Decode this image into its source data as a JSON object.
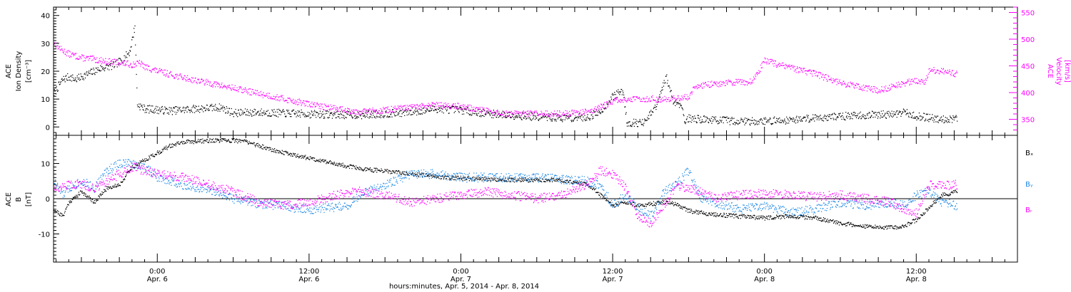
{
  "colors": {
    "black": "#000000",
    "magenta": "#ff00ff",
    "blue": "#1e88e5"
  },
  "xaxis": {
    "title": "hours:minutes, Apr.  5, 2014 - Apr.  8, 2014",
    "ticks": [
      {
        "time": "0:00",
        "date": "Apr. 6",
        "hour": 4
      },
      {
        "time": "12:00",
        "date": "Apr. 6",
        "hour": 16
      },
      {
        "time": "0:00",
        "date": "Apr. 7",
        "hour": 28
      },
      {
        "time": "12:00",
        "date": "Apr. 7",
        "hour": 40
      },
      {
        "time": "0:00",
        "date": "Apr. 8",
        "hour": 52
      },
      {
        "time": "12:00",
        "date": "Apr. 8",
        "hour": 64
      }
    ],
    "range_hours": [
      -4.2,
      72.0
    ]
  },
  "chart_data": [
    {
      "type": "scatter",
      "panel": "top",
      "left_axis": {
        "label_lines": [
          "ACE",
          "Ion Density",
          "[cm⁻³]"
        ],
        "ylim": [
          -3,
          43
        ],
        "ticks": [
          0,
          10,
          20,
          30,
          40
        ],
        "color": "#000000"
      },
      "right_axis": {
        "label_lines": [
          "ACE",
          "Velocity",
          "[km/s]"
        ],
        "ylim": [
          320,
          560
        ],
        "ticks": [
          350,
          400,
          450,
          500,
          550
        ],
        "color": "#ff00ff"
      },
      "series": [
        {
          "axis": "left",
          "color": "#000000",
          "points": [
            [
              -4.2,
              12
            ],
            [
              -3.5,
              17
            ],
            [
              -3,
              18
            ],
            [
              -2.5,
              17
            ],
            [
              -1.5,
              19
            ],
            [
              -0.5,
              21
            ],
            [
              0.5,
              22
            ],
            [
              1.2,
              24
            ],
            [
              1.8,
              27
            ],
            [
              2.2,
              36
            ],
            [
              2.4,
              8
            ],
            [
              3,
              6.5
            ],
            [
              5,
              5.8
            ],
            [
              7,
              6.5
            ],
            [
              9,
              7
            ],
            [
              10,
              5
            ],
            [
              12,
              5.2
            ],
            [
              14,
              4.9
            ],
            [
              16,
              4.6
            ],
            [
              18,
              4.4
            ],
            [
              20,
              4.3
            ],
            [
              22,
              4.7
            ],
            [
              24,
              5.3
            ],
            [
              26,
              6.5
            ],
            [
              28,
              6
            ],
            [
              30,
              4.8
            ],
            [
              32,
              4.2
            ],
            [
              34,
              3.6
            ],
            [
              36,
              3.2
            ],
            [
              38,
              3.5
            ],
            [
              39,
              5.5
            ],
            [
              40,
              11
            ],
            [
              40.8,
              13
            ],
            [
              41.1,
              1.5
            ],
            [
              42.5,
              1.5
            ],
            [
              43.5,
              8
            ],
            [
              44.2,
              18
            ],
            [
              44.8,
              9
            ],
            [
              45.4,
              8
            ],
            [
              45.7,
              2
            ],
            [
              46,
              3
            ],
            [
              48,
              2.5
            ],
            [
              50,
              2
            ],
            [
              52,
              2.1
            ],
            [
              54,
              2.5
            ],
            [
              56,
              3.3
            ],
            [
              58,
              3.8
            ],
            [
              60,
              4.2
            ],
            [
              62,
              4.5
            ],
            [
              63,
              5.2
            ],
            [
              64,
              3.8
            ],
            [
              66,
              2.8
            ],
            [
              67.2,
              2.8
            ]
          ]
        },
        {
          "axis": "right",
          "color": "#ff00ff",
          "points": [
            [
              -4.2,
              493
            ],
            [
              -3.6,
              480
            ],
            [
              -3,
              472
            ],
            [
              -2,
              465
            ],
            [
              -1,
              462
            ],
            [
              0,
              458
            ],
            [
              1,
              456
            ],
            [
              2,
              452
            ],
            [
              2.6,
              455
            ],
            [
              3,
              448
            ],
            [
              4,
              440
            ],
            [
              6,
              428
            ],
            [
              8,
              418
            ],
            [
              10,
              408
            ],
            [
              12,
              398
            ],
            [
              14,
              388
            ],
            [
              16,
              378
            ],
            [
              18,
              370
            ],
            [
              20,
              364
            ],
            [
              22,
              367
            ],
            [
              24,
              372
            ],
            [
              26,
              376
            ],
            [
              28,
              374
            ],
            [
              30,
              365
            ],
            [
              31,
              361
            ],
            [
              32,
              360
            ],
            [
              34,
              360
            ],
            [
              36,
              360
            ],
            [
              38,
              364
            ],
            [
              39,
              372
            ],
            [
              40,
              384
            ],
            [
              42,
              388
            ],
            [
              44,
              388
            ],
            [
              45,
              389
            ],
            [
              46,
              392
            ],
            [
              46.5,
              412
            ],
            [
              48,
              416
            ],
            [
              50,
              420
            ],
            [
              51,
              420
            ],
            [
              52,
              460
            ],
            [
              54,
              446
            ],
            [
              56,
              435
            ],
            [
              58,
              418
            ],
            [
              60,
              408
            ],
            [
              61,
              404
            ],
            [
              62,
              410
            ],
            [
              63,
              418
            ],
            [
              64,
              423
            ],
            [
              64.7,
              418
            ],
            [
              65,
              443
            ],
            [
              66,
              440
            ],
            [
              67.2,
              435
            ]
          ]
        }
      ]
    },
    {
      "type": "scatter",
      "panel": "bottom",
      "left_axis": {
        "label_lines": [
          "ACE",
          "B",
          "[nT]"
        ],
        "ylim": [
          -18,
          18
        ],
        "ticks": [
          -10,
          0,
          10
        ],
        "color": "#000000"
      },
      "legend": [
        "Bₓ",
        "Bᵧ",
        "Bᵣ"
      ],
      "series": [
        {
          "name": "Bₓ",
          "color": "#000000",
          "points": [
            [
              -4.2,
              -3
            ],
            [
              -3.5,
              -5
            ],
            [
              -3,
              -1
            ],
            [
              -2,
              2
            ],
            [
              -1,
              -1
            ],
            [
              0,
              3
            ],
            [
              1,
              4
            ],
            [
              2,
              9
            ],
            [
              3,
              11
            ],
            [
              4,
              13
            ],
            [
              5,
              15
            ],
            [
              6,
              16
            ],
            [
              8,
              16.5
            ],
            [
              10,
              16.5
            ],
            [
              11,
              16.3
            ],
            [
              12,
              15
            ],
            [
              14,
              13
            ],
            [
              16,
              11.5
            ],
            [
              18,
              10
            ],
            [
              20,
              8.5
            ],
            [
              22,
              7.8
            ],
            [
              24,
              7
            ],
            [
              26,
              6.3
            ],
            [
              28,
              5.8
            ],
            [
              30,
              5.5
            ],
            [
              32,
              5.3
            ],
            [
              34,
              5.3
            ],
            [
              36,
              5.3
            ],
            [
              38,
              4
            ],
            [
              39,
              1
            ],
            [
              40,
              -2
            ],
            [
              41,
              -1
            ],
            [
              42,
              -2
            ],
            [
              43,
              -1.5
            ],
            [
              44,
              -1
            ],
            [
              45,
              -1.5
            ],
            [
              46,
              -3.5
            ],
            [
              47,
              -4
            ],
            [
              48,
              -4.5
            ],
            [
              50,
              -5
            ],
            [
              52,
              -5.5
            ],
            [
              54,
              -5
            ],
            [
              56,
              -5.5
            ],
            [
              58,
              -7
            ],
            [
              60,
              -8
            ],
            [
              62,
              -8.2
            ],
            [
              63,
              -7.8
            ],
            [
              64,
              -6
            ],
            [
              65,
              -2.5
            ],
            [
              66,
              1
            ],
            [
              67.2,
              2
            ]
          ]
        },
        {
          "name": "Bᵧ",
          "color": "#1e88e5",
          "points": [
            [
              -4.2,
              5
            ],
            [
              -3.5,
              1
            ],
            [
              -3,
              3
            ],
            [
              -2,
              5
            ],
            [
              -1,
              3
            ],
            [
              0,
              8
            ],
            [
              1,
              10
            ],
            [
              2,
              10
            ],
            [
              3,
              9
            ],
            [
              4,
              6
            ],
            [
              6,
              4
            ],
            [
              8,
              2.5
            ],
            [
              10,
              0
            ],
            [
              12,
              -1.5
            ],
            [
              14,
              -2
            ],
            [
              15,
              -3
            ],
            [
              16,
              -3
            ],
            [
              18,
              -2.5
            ],
            [
              19,
              -2
            ],
            [
              20,
              1
            ],
            [
              22,
              4
            ],
            [
              24,
              7
            ],
            [
              26,
              7
            ],
            [
              28,
              6
            ],
            [
              30,
              6
            ],
            [
              32,
              6
            ],
            [
              34,
              6
            ],
            [
              36,
              5.5
            ],
            [
              38,
              5
            ],
            [
              39,
              4
            ],
            [
              40,
              -2
            ],
            [
              41,
              1
            ],
            [
              42,
              -3
            ],
            [
              43,
              -5
            ],
            [
              44,
              2
            ],
            [
              45,
              4
            ],
            [
              46,
              8
            ],
            [
              47,
              0
            ],
            [
              48,
              -1
            ],
            [
              50,
              -3
            ],
            [
              52,
              -2
            ],
            [
              54,
              -4
            ],
            [
              56,
              -3
            ],
            [
              58,
              -1
            ],
            [
              60,
              -2
            ],
            [
              62,
              -1
            ],
            [
              63,
              -2
            ],
            [
              64,
              1
            ],
            [
              65,
              2
            ],
            [
              66,
              -1
            ],
            [
              67.2,
              -2
            ]
          ]
        },
        {
          "name": "Bᵣ",
          "color": "#ff00ff",
          "points": [
            [
              -4.2,
              3
            ],
            [
              -3.5,
              3
            ],
            [
              -3,
              4
            ],
            [
              -2,
              4
            ],
            [
              -1,
              3
            ],
            [
              0,
              5
            ],
            [
              1,
              7
            ],
            [
              2,
              9
            ],
            [
              3,
              8
            ],
            [
              4,
              7
            ],
            [
              6,
              6
            ],
            [
              8,
              4
            ],
            [
              10,
              2
            ],
            [
              12,
              -1
            ],
            [
              14,
              -2
            ],
            [
              16,
              -1
            ],
            [
              18,
              1
            ],
            [
              20,
              2
            ],
            [
              22,
              1
            ],
            [
              24,
              -1
            ],
            [
              26,
              0
            ],
            [
              28,
              1
            ],
            [
              30,
              2
            ],
            [
              32,
              1
            ],
            [
              34,
              0
            ],
            [
              36,
              1
            ],
            [
              38,
              4
            ],
            [
              39,
              8
            ],
            [
              40,
              7
            ],
            [
              41,
              3
            ],
            [
              42,
              -5
            ],
            [
              43,
              -7
            ],
            [
              44,
              -2
            ],
            [
              45,
              4
            ],
            [
              46,
              3
            ],
            [
              47,
              2
            ],
            [
              48,
              0
            ],
            [
              50,
              1
            ],
            [
              52,
              1.5
            ],
            [
              54,
              1
            ],
            [
              56,
              0.5
            ],
            [
              58,
              1
            ],
            [
              60,
              0
            ],
            [
              62,
              -1
            ],
            [
              63,
              -3
            ],
            [
              64,
              -4
            ],
            [
              65,
              4
            ],
            [
              66,
              3.5
            ],
            [
              67.2,
              4
            ]
          ]
        }
      ]
    }
  ]
}
